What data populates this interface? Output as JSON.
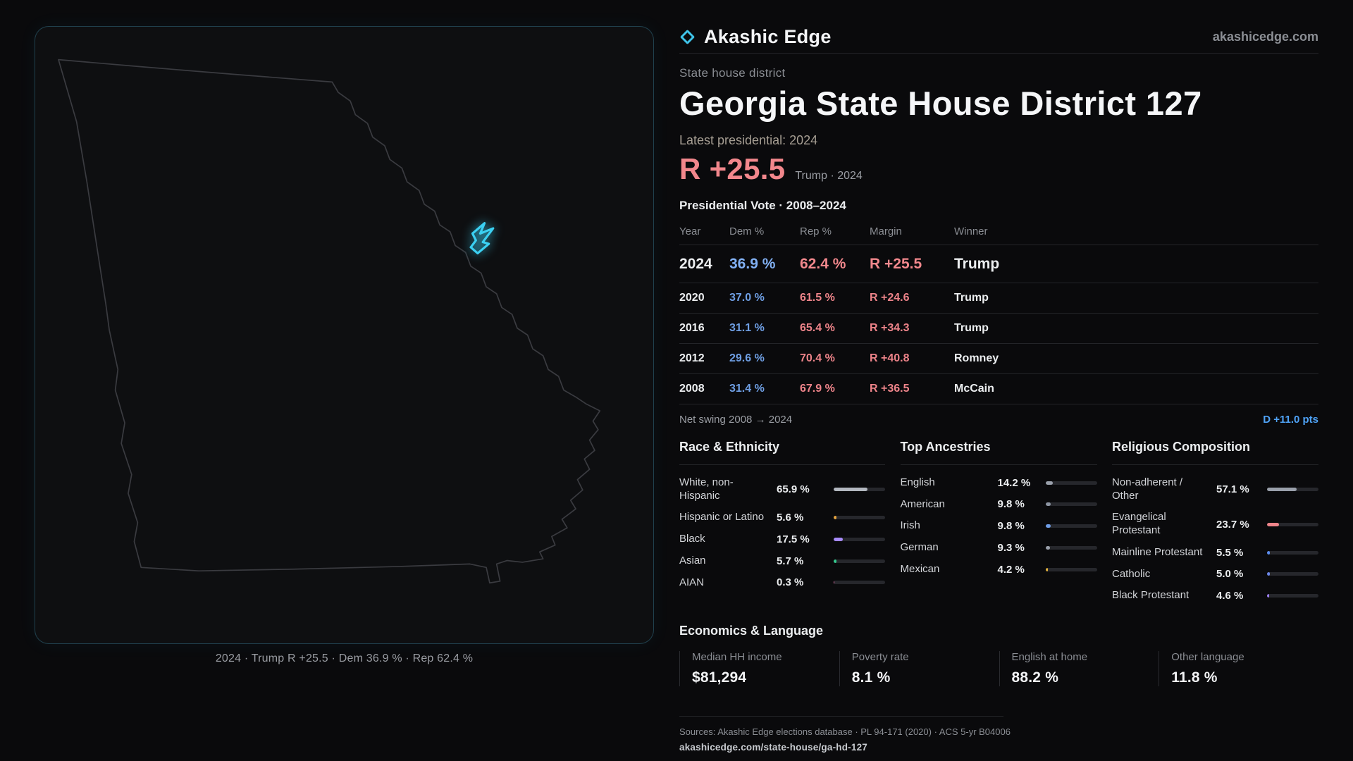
{
  "header": {
    "brand": "Akashic Edge",
    "site": "akashicedge.com"
  },
  "map": {
    "caption": "2024 · Trump R +25.5 · Dem 36.9 % · Rep 62.4 %"
  },
  "district": {
    "type_label": "State house district",
    "title": "Georgia State House District 127",
    "latest_label": "Latest presidential: 2024",
    "latest_margin": "R +25.5",
    "latest_detail": "Trump · 2024"
  },
  "vote_table": {
    "title": "Presidential Vote · 2008–2024",
    "headers": {
      "year": "Year",
      "dem": "Dem %",
      "rep": "Rep %",
      "margin": "Margin",
      "winner": "Winner"
    },
    "rows": [
      {
        "year": "2024",
        "dem": "36.9 %",
        "rep": "62.4 %",
        "margin": "R +25.5",
        "winner": "Trump",
        "highlight": true
      },
      {
        "year": "2020",
        "dem": "37.0 %",
        "rep": "61.5 %",
        "margin": "R +24.6",
        "winner": "Trump"
      },
      {
        "year": "2016",
        "dem": "31.1 %",
        "rep": "65.4 %",
        "margin": "R +34.3",
        "winner": "Trump"
      },
      {
        "year": "2012",
        "dem": "29.6 %",
        "rep": "70.4 %",
        "margin": "R +40.8",
        "winner": "Romney"
      },
      {
        "year": "2008",
        "dem": "31.4 %",
        "rep": "67.9 %",
        "margin": "R +36.5",
        "winner": "McCain"
      }
    ],
    "swing_label": "Net swing 2008 → 2024",
    "swing_value": "D +11.0 pts"
  },
  "demographics": {
    "race": {
      "title": "Race & Ethnicity",
      "items": [
        {
          "label": "White, non-Hispanic",
          "value": "65.9 %",
          "pct": 65.9,
          "color": "#b3b8c0"
        },
        {
          "label": "Hispanic or Latino",
          "value": "5.6 %",
          "pct": 5.6,
          "color": "#e5a33e"
        },
        {
          "label": "Black",
          "value": "17.5 %",
          "pct": 17.5,
          "color": "#a78bfa"
        },
        {
          "label": "Asian",
          "value": "5.7 %",
          "pct": 5.7,
          "color": "#34c98e"
        },
        {
          "label": "AIAN",
          "value": "0.3 %",
          "pct": 0.3,
          "color": "#e06ca4"
        }
      ]
    },
    "ancestries": {
      "title": "Top Ancestries",
      "items": [
        {
          "label": "English",
          "value": "14.2 %",
          "pct": 14.2,
          "color": "#9aa0ab"
        },
        {
          "label": "American",
          "value": "9.8 %",
          "pct": 9.8,
          "color": "#8d95a3"
        },
        {
          "label": "Irish",
          "value": "9.8 %",
          "pct": 9.8,
          "color": "#6f9ee8"
        },
        {
          "label": "German",
          "value": "9.3 %",
          "pct": 9.3,
          "color": "#9aa0ab"
        },
        {
          "label": "Mexican",
          "value": "4.2 %",
          "pct": 4.2,
          "color": "#e5b43e"
        }
      ]
    },
    "religion": {
      "title": "Religious Composition",
      "items": [
        {
          "label": "Non-adherent / Other",
          "value": "57.1 %",
          "pct": 57.1,
          "color": "#9aa0ab"
        },
        {
          "label": "Evangelical Protestant",
          "value": "23.7 %",
          "pct": 23.7,
          "color": "#ee848a"
        },
        {
          "label": "Mainline Protestant",
          "value": "5.5 %",
          "pct": 5.5,
          "color": "#5b8def"
        },
        {
          "label": "Catholic",
          "value": "5.0 %",
          "pct": 5.0,
          "color": "#6b86e8"
        },
        {
          "label": "Black Protestant",
          "value": "4.6 %",
          "pct": 4.6,
          "color": "#9b7ef0"
        }
      ]
    }
  },
  "economics": {
    "title": "Economics & Language",
    "stats": [
      {
        "label": "Median HH income",
        "value": "$81,294"
      },
      {
        "label": "Poverty rate",
        "value": "8.1 %"
      },
      {
        "label": "English at home",
        "value": "88.2 %"
      },
      {
        "label": "Other language",
        "value": "11.8 %"
      }
    ]
  },
  "footer": {
    "sources": "Sources: Akashic Edge elections database · PL 94-171 (2020) · ACS 5-yr B04006",
    "permalink": "akashicedge.com/state-house/ga-hd-127"
  },
  "colors": {
    "accent_cyan": "#3bd0f2",
    "republican_red": "#ee848a",
    "democrat_blue": "#6f9fe4",
    "swing_blue": "#4fa3f7",
    "background": "#0a0a0c"
  },
  "chart_data": [
    {
      "type": "table",
      "title": "Presidential Vote · 2008–2024",
      "columns": [
        "Year",
        "Dem %",
        "Rep %",
        "Margin",
        "Winner"
      ],
      "rows": [
        [
          2024,
          36.9,
          62.4,
          "R +25.5",
          "Trump"
        ],
        [
          2020,
          37.0,
          61.5,
          "R +24.6",
          "Trump"
        ],
        [
          2016,
          31.1,
          65.4,
          "R +34.3",
          "Trump"
        ],
        [
          2012,
          29.6,
          70.4,
          "R +40.8",
          "Romney"
        ],
        [
          2008,
          31.4,
          67.9,
          "R +36.5",
          "McCain"
        ]
      ],
      "annotations": [
        "Net swing 2008 → 2024: D +11.0 pts",
        "Latest: R +25.5 Trump 2024"
      ]
    },
    {
      "type": "bar",
      "title": "Race & Ethnicity",
      "categories": [
        "White, non-Hispanic",
        "Hispanic or Latino",
        "Black",
        "Asian",
        "AIAN"
      ],
      "values": [
        65.9,
        5.6,
        17.5,
        5.7,
        0.3
      ],
      "xlabel": "",
      "ylabel": "",
      "unit": "%",
      "xlim": [
        0,
        100
      ]
    },
    {
      "type": "bar",
      "title": "Top Ancestries",
      "categories": [
        "English",
        "American",
        "Irish",
        "German",
        "Mexican"
      ],
      "values": [
        14.2,
        9.8,
        9.8,
        9.3,
        4.2
      ],
      "xlabel": "",
      "ylabel": "",
      "unit": "%",
      "xlim": [
        0,
        100
      ]
    },
    {
      "type": "bar",
      "title": "Religious Composition",
      "categories": [
        "Non-adherent / Other",
        "Evangelical Protestant",
        "Mainline Protestant",
        "Catholic",
        "Black Protestant"
      ],
      "values": [
        57.1,
        23.7,
        5.5,
        5.0,
        4.6
      ],
      "xlabel": "",
      "ylabel": "",
      "unit": "%",
      "xlim": [
        0,
        100
      ]
    },
    {
      "type": "table",
      "title": "Economics & Language",
      "columns": [
        "Metric",
        "Value"
      ],
      "rows": [
        [
          "Median HH income",
          "$81,294"
        ],
        [
          "Poverty rate",
          "8.1 %"
        ],
        [
          "English at home",
          "88.2 %"
        ],
        [
          "Other language",
          "11.8 %"
        ]
      ]
    }
  ]
}
